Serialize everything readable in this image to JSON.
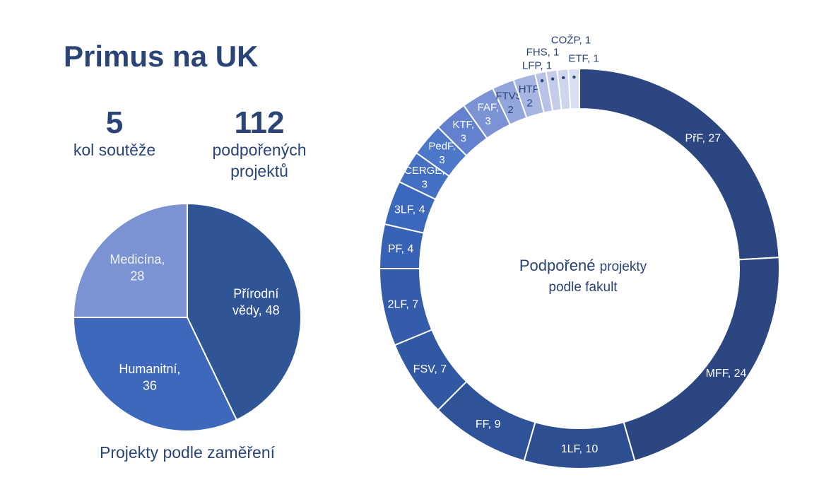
{
  "title": "Primus na UK",
  "stats": {
    "rounds": {
      "value": "5",
      "label": "kol soutěže"
    },
    "projects": {
      "value": "112",
      "label_line1": "podpořených",
      "label_line2": "projektů"
    }
  },
  "chart_data": [
    {
      "type": "pie",
      "title": "Projekty podle zaměření",
      "slices": [
        {
          "name": "Přírodní vědy",
          "value": 48,
          "label_lines": [
            "Přírodní",
            "vědy, 48"
          ],
          "color": "#2f5597",
          "text_color": "#ffffff"
        },
        {
          "name": "Humanitní",
          "value": 36,
          "label_lines": [
            "Humanitní,",
            "36"
          ],
          "color": "#3d68bb",
          "text_color": "#ffffff"
        },
        {
          "name": "Medicína",
          "value": 28,
          "label_lines": [
            "Medicína,",
            "28"
          ],
          "color": "#7b93d2",
          "text_color": "#eef2fb"
        }
      ]
    },
    {
      "type": "pie",
      "subtype": "donut",
      "title_parts": [
        "Podpořené",
        "projekty",
        "podle fakult"
      ],
      "slices": [
        {
          "name": "PřF",
          "value": 27,
          "label_lines": [
            "PřF, 27"
          ],
          "color": "#2b4680",
          "text_color": "#ffffff"
        },
        {
          "name": "MFF",
          "value": 24,
          "label_lines": [
            "MFF, 24"
          ],
          "color": "#2b4680",
          "text_color": "#ffffff"
        },
        {
          "name": "1LF",
          "value": 10,
          "label_lines": [
            "1LF, 10"
          ],
          "color": "#2d4f92",
          "text_color": "#ffffff"
        },
        {
          "name": "FF",
          "value": 9,
          "label_lines": [
            "FF, 9"
          ],
          "color": "#2f5399",
          "text_color": "#ffffff"
        },
        {
          "name": "FSV",
          "value": 7,
          "label_lines": [
            "FSV, 7"
          ],
          "color": "#3158a3",
          "text_color": "#ffffff"
        },
        {
          "name": "2LF",
          "value": 7,
          "label_lines": [
            "2LF, 7"
          ],
          "color": "#345cab",
          "text_color": "#ffffff"
        },
        {
          "name": "PF",
          "value": 4,
          "label_lines": [
            "PF, 4"
          ],
          "color": "#3862b6",
          "text_color": "#ffffff"
        },
        {
          "name": "3LF",
          "value": 4,
          "label_lines": [
            "3LF, 4"
          ],
          "color": "#3b67bd",
          "text_color": "#ffffff"
        },
        {
          "name": "CERGE",
          "value": 3,
          "label_lines": [
            "CERGE,",
            "3"
          ],
          "color": "#4470c4",
          "text_color": "#ffffff"
        },
        {
          "name": "PedF",
          "value": 3,
          "label_lines": [
            "PedF,",
            "3"
          ],
          "color": "#4d78c9",
          "text_color": "#ffffff"
        },
        {
          "name": "KTF",
          "value": 3,
          "label_lines": [
            "KTF,",
            "3"
          ],
          "color": "#6381ce",
          "text_color": "#ffffff"
        },
        {
          "name": "FAF",
          "value": 3,
          "label_lines": [
            "FAF,",
            "3"
          ],
          "color": "#7b92d4",
          "text_color": "#ffffff"
        },
        {
          "name": "FTVS",
          "value": 2,
          "label_lines": [
            "FTVS,",
            "2"
          ],
          "color": "#93a6dc",
          "text_color": "#2a4478"
        },
        {
          "name": "HTF",
          "value": 2,
          "label_lines": [
            "HTF,",
            "2"
          ],
          "color": "#a6b5e2",
          "text_color": "#2a4478"
        },
        {
          "name": "LFP",
          "value": 1,
          "label_lines": [
            "LFP, 1"
          ],
          "color": "#b6c3e7",
          "text_color": "#2a4478",
          "outside": true
        },
        {
          "name": "FHS",
          "value": 1,
          "label_lines": [
            "FHS, 1"
          ],
          "color": "#c3cdeb",
          "text_color": "#2a4478",
          "outside": true
        },
        {
          "name": "COŽP",
          "value": 1,
          "label_lines": [
            "COŽP, 1"
          ],
          "color": "#ced6ee",
          "text_color": "#2a4478",
          "outside": true
        },
        {
          "name": "ETF",
          "value": 1,
          "label_lines": [
            "ETF, 1"
          ],
          "color": "#d9dff2",
          "text_color": "#2a4478",
          "outside": true
        }
      ]
    }
  ]
}
